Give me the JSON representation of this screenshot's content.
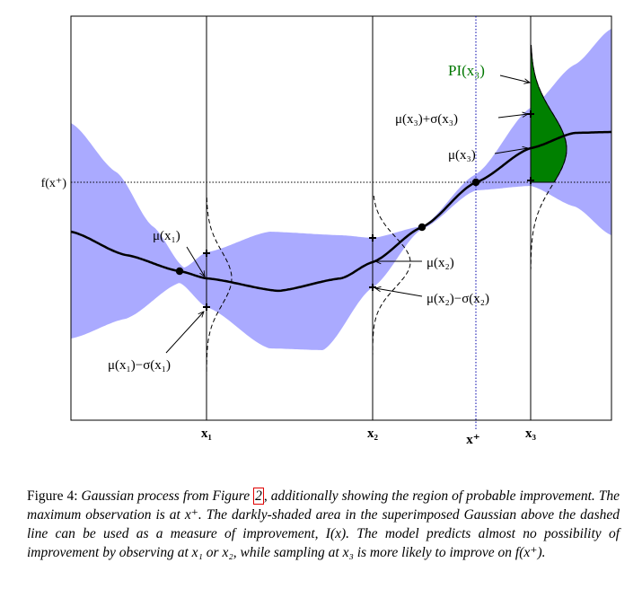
{
  "figure": {
    "labels": {
      "fx_plus": "f(x⁺)",
      "mu_x1": "μ(x₁)",
      "mu_x1_minus_sigma": "μ(x₁)−σ(x₁)",
      "mu_x2": "μ(x₂)",
      "mu_x2_minus_sigma": "μ(x₂)−σ(x₂)",
      "mu_x3": "μ(x₃)",
      "mu_x3_plus_sigma": "μ(x₃)+σ(x₃)",
      "pi_x3": "PI(x₃)"
    },
    "axis_ticks": {
      "x1": "x₁",
      "x2": "x₂",
      "x_plus": "x⁺",
      "x3": "x₃"
    },
    "colors": {
      "confidence_band": "#aaaaff",
      "pi_region": "#008000",
      "pi_label": "#007700",
      "x_plus_line": "#0000aa",
      "mean_line": "#000000"
    }
  },
  "caption": {
    "lead": "Figure 4: ",
    "part1": "Gaussian process from Figure ",
    "ref": "2",
    "part2": ", additionally showing the region of probable improvement. The maximum observation is at x⁺. The darkly-shaded area in the superimposed Gaussian above the dashed line can be used as a measure of improvement, I(x). The model predicts almost no possibility of improvement by observing at x₁ or x₂, while sampling at x₃ is more likely to improve on f(x⁺)."
  }
}
